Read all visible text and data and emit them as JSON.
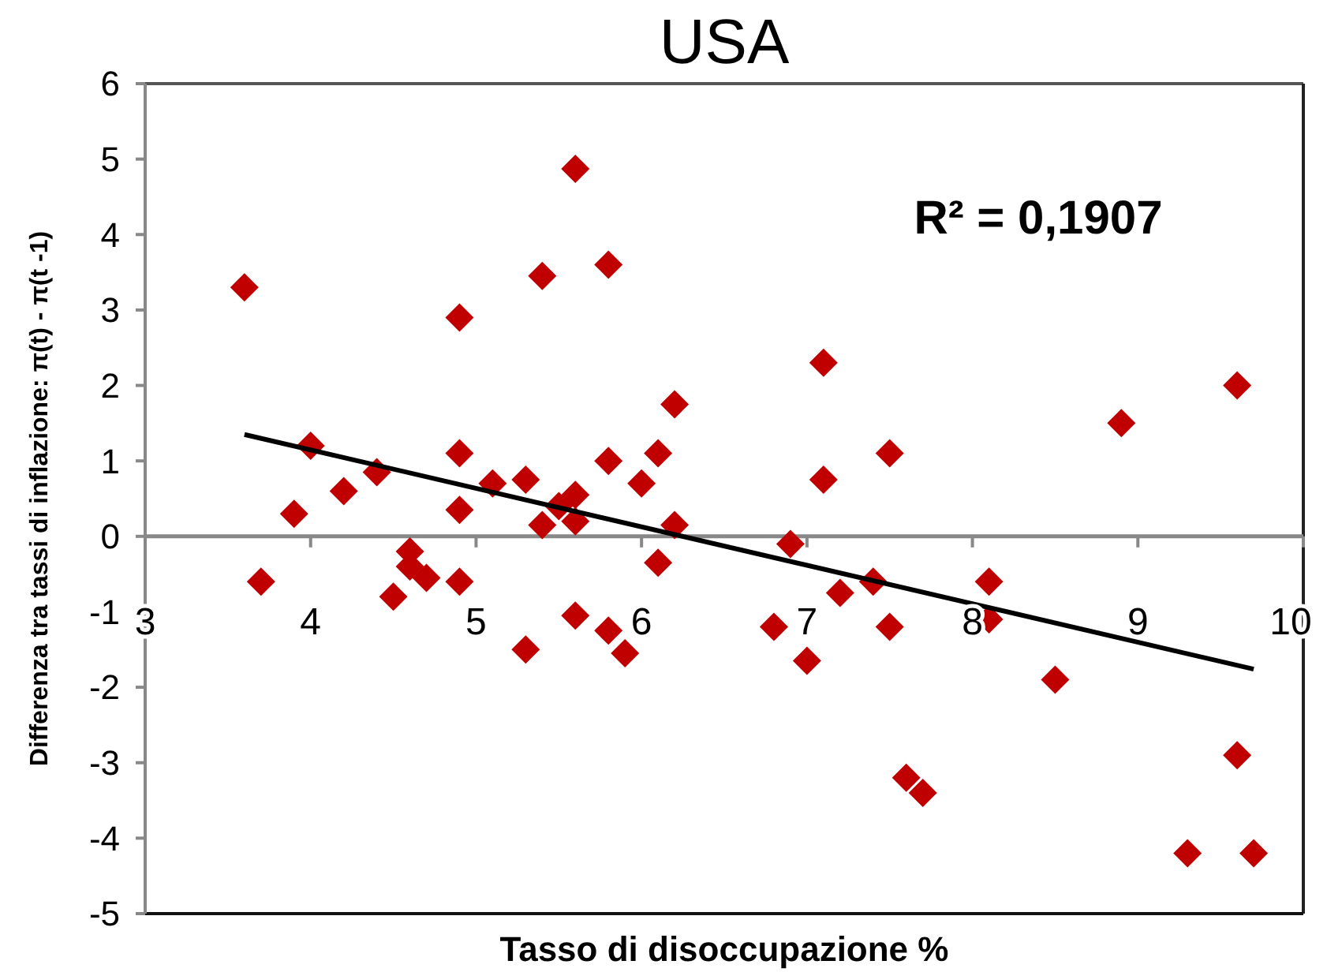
{
  "chart_data": {
    "type": "scatter",
    "title": "USA",
    "xlabel": "Tasso di disoccupazione %",
    "ylabel": "Differenza tra tassi di inflazione:  π(t) - π(t -1)",
    "xlim": [
      3,
      10
    ],
    "xticks": [
      3,
      4,
      5,
      6,
      7,
      8,
      9,
      10
    ],
    "ylim": [
      -5,
      6
    ],
    "yticks": [
      -5,
      -4,
      -3,
      -2,
      -1,
      0,
      1,
      2,
      3,
      4,
      5,
      6
    ],
    "grid": false,
    "annotations": [
      "R² = 0,1907"
    ],
    "series": [
      {
        "color": "#c00000",
        "marker": "diamond",
        "x": [
          3.6,
          3.7,
          3.9,
          4.0,
          4.2,
          4.4,
          4.5,
          4.6,
          4.6,
          4.7,
          4.9,
          4.9,
          4.9,
          4.9,
          5.1,
          5.3,
          5.3,
          5.4,
          5.4,
          5.5,
          5.6,
          5.6,
          5.6,
          5.6,
          5.8,
          5.8,
          5.8,
          5.9,
          6.0,
          6.1,
          6.1,
          6.2,
          6.2,
          6.8,
          6.9,
          7.0,
          7.1,
          7.1,
          7.2,
          7.4,
          7.5,
          7.5,
          7.6,
          7.7,
          8.1,
          8.1,
          8.5,
          8.9,
          9.3,
          9.6,
          9.6,
          9.7
        ],
        "values": [
          3.3,
          -0.6,
          0.3,
          1.2,
          0.6,
          0.85,
          -0.8,
          -0.2,
          -0.4,
          -0.55,
          2.9,
          1.1,
          0.35,
          -0.6,
          0.7,
          0.75,
          -1.5,
          3.45,
          0.15,
          0.4,
          4.87,
          0.55,
          0.2,
          -1.05,
          3.6,
          1.0,
          -1.25,
          -1.55,
          0.7,
          1.1,
          -0.35,
          1.75,
          0.15,
          -1.2,
          -0.1,
          -1.65,
          2.3,
          0.75,
          -0.75,
          -0.6,
          1.1,
          -1.2,
          -3.2,
          -3.4,
          -0.6,
          -1.1,
          -1.9,
          1.5,
          -4.2,
          2.0,
          -2.9,
          -4.2
        ]
      },
      {
        "type": "line",
        "color": "#000000",
        "x": [
          3.6,
          9.7
        ],
        "values": [
          1.35,
          -1.76
        ],
        "marker": "none"
      }
    ]
  }
}
